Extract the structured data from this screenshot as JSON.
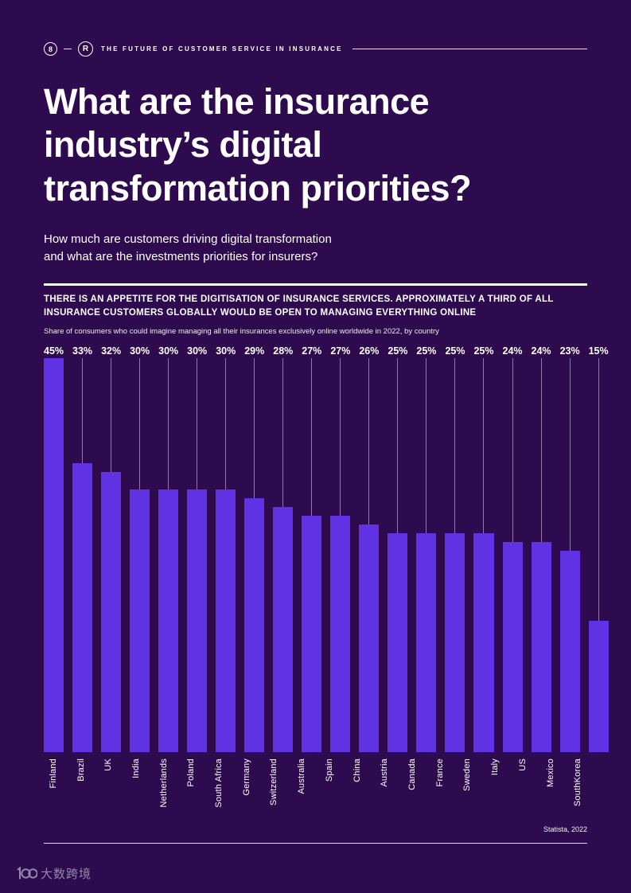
{
  "page": {
    "page_number": "8",
    "brand_mark": "R",
    "header_title": "THE FUTURE OF CUSTOMER SERVICE IN INSURANCE",
    "title_line1": "What are the insurance",
    "title_line2": "industry’s digital",
    "title_line3": "transformation priorities?",
    "subtitle_line1": "How much are customers driving digital transformation",
    "subtitle_line2": "and what are the investments priorities for insurers?",
    "statement_line1": "THERE IS AN APPETITE FOR THE DIGITISATION OF INSURANCE SERVICES. APPROXIMATELY A THIRD OF ALL",
    "statement_line2": "INSURANCE CUSTOMERS GLOBALLY WOULD BE OPEN TO MANAGING EVERYTHING ONLINE",
    "chart_note": "Share of consumers who could imagine managing all their insurances exclusively online worldwide in 2022, by country",
    "source": "Statista, 2022",
    "watermark": "大数跨境"
  },
  "colors": {
    "background": "#2d0b4e",
    "bar": "#6132e3",
    "text": "#ffffff"
  },
  "chart_data": {
    "type": "bar",
    "title": "THERE IS AN APPETITE FOR THE DIGITISATION OF INSURANCE SERVICES. APPROXIMATELY A THIRD OF ALL INSURANCE CUSTOMERS GLOBALLY WOULD BE OPEN TO MANAGING EVERYTHING ONLINE",
    "subtitle": "Share of consumers who could imagine managing all their insurances exclusively online worldwide in 2022, by country",
    "unit": "%",
    "categories": [
      "Finland",
      "Brazil",
      "UK",
      "India",
      "Netherlands",
      "Poland",
      "South Africa",
      "Germany",
      "Switzerland",
      "Australia",
      "Spain",
      "China",
      "Austria",
      "Canada",
      "France",
      "Sweden",
      "Italy",
      "US",
      "Mexico",
      "SouthKorea"
    ],
    "values": [
      45,
      33,
      32,
      30,
      30,
      30,
      30,
      29,
      28,
      27,
      27,
      26,
      25,
      25,
      25,
      25,
      24,
      24,
      23,
      15
    ],
    "value_labels": [
      "45%",
      "33%",
      "32%",
      "30%",
      "30%",
      "30%",
      "30%",
      "29%",
      "28%",
      "27%",
      "27%",
      "26%",
      "25%",
      "25%",
      "25%",
      "25%",
      "24%",
      "24%",
      "23%",
      "15%"
    ],
    "ylim": [
      0,
      45
    ],
    "grid": false,
    "legend": "none",
    "bar_color": "#6132e3",
    "source": "Statista, 2022"
  }
}
